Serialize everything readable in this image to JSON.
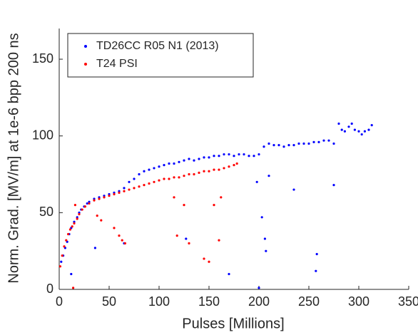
{
  "chart_data": {
    "type": "scatter",
    "xlabel": "Pulses [Millions]",
    "ylabel": "Norm. Grad. [MV/m] at 1e-6 bpp 200 ns",
    "xlim": [
      0,
      350
    ],
    "ylim": [
      0,
      170
    ],
    "xticks": [
      0,
      50,
      100,
      150,
      200,
      250,
      300,
      350
    ],
    "yticks": [
      0,
      50,
      100,
      150
    ],
    "grid": false,
    "legend": "upper left",
    "series": [
      {
        "name": "TD26CC R05 N1 (2013)",
        "color": "#0000ff",
        "x": [
          2,
          4,
          6,
          8,
          10,
          12,
          15,
          18,
          20,
          22,
          25,
          28,
          30,
          35,
          40,
          45,
          50,
          55,
          60,
          65,
          70,
          75,
          80,
          85,
          90,
          95,
          100,
          105,
          110,
          115,
          120,
          125,
          130,
          135,
          140,
          145,
          150,
          155,
          160,
          165,
          170,
          175,
          180,
          185,
          190,
          195,
          200,
          205,
          210,
          215,
          220,
          225,
          230,
          235,
          240,
          245,
          250,
          255,
          260,
          265,
          270,
          275,
          280,
          283,
          286,
          290,
          293,
          296,
          300,
          303,
          306,
          310,
          313,
          12,
          36,
          65,
          127,
          170,
          198,
          200,
          203,
          206,
          207,
          210,
          257,
          258,
          235,
          275
        ],
        "y": [
          18,
          22,
          27,
          31,
          36,
          40,
          44,
          47,
          50,
          52,
          54,
          56,
          57,
          59,
          60,
          61,
          62,
          63,
          64,
          66,
          70,
          72,
          75,
          77,
          78,
          79,
          80,
          81,
          82,
          82,
          83,
          84,
          85,
          84,
          85,
          86,
          86,
          87,
          87,
          88,
          88,
          87,
          88,
          88,
          87,
          87,
          88,
          93,
          95,
          94,
          94,
          93,
          94,
          94,
          95,
          95,
          95,
          96,
          96,
          97,
          97,
          95,
          108,
          104,
          103,
          106,
          108,
          104,
          103,
          101,
          103,
          104,
          107,
          10,
          27,
          30,
          33,
          10,
          70,
          1,
          47,
          33,
          25,
          74,
          12,
          23,
          65,
          68
        ]
      },
      {
        "name": "T24 PSI",
        "color": "#ff0000",
        "x": [
          1,
          3,
          5,
          7,
          9,
          11,
          13,
          15,
          18,
          20,
          23,
          26,
          30,
          35,
          40,
          45,
          50,
          55,
          60,
          65,
          70,
          75,
          80,
          85,
          90,
          95,
          100,
          105,
          110,
          115,
          120,
          125,
          130,
          135,
          140,
          145,
          150,
          155,
          160,
          165,
          170,
          175,
          178,
          14,
          16,
          38,
          42,
          55,
          60,
          63,
          66,
          115,
          118,
          125,
          130,
          145,
          150,
          155,
          160,
          162
        ],
        "y": [
          15,
          22,
          28,
          32,
          36,
          39,
          41,
          43,
          46,
          49,
          52,
          54,
          56,
          58,
          59,
          60,
          61,
          62,
          63,
          64,
          65,
          66,
          67,
          68,
          69,
          70,
          71,
          72,
          72,
          73,
          73,
          74,
          75,
          75,
          76,
          77,
          77,
          78,
          78,
          79,
          80,
          81,
          82,
          1,
          55,
          48,
          45,
          40,
          35,
          32,
          30,
          60,
          35,
          55,
          30,
          20,
          18,
          55,
          32,
          60
        ]
      }
    ]
  }
}
